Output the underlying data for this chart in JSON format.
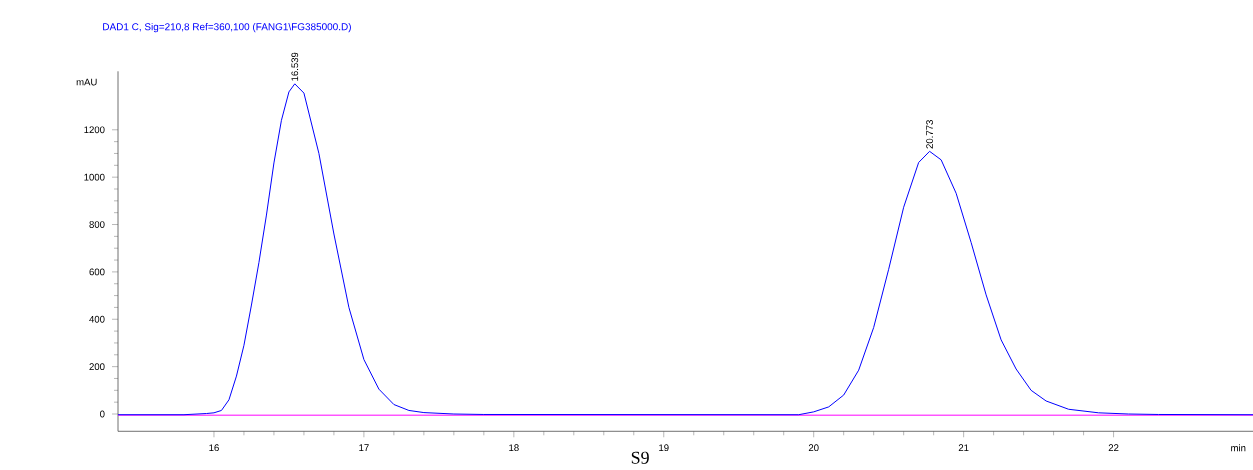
{
  "chart_data": {
    "type": "line",
    "title": "DAD1 C, Sig=210,8 Ref=360,100 (FANG1\\FG385000.D)",
    "xlabel": "min",
    "ylabel": "mAU",
    "xlim": [
      15.36,
      22.93
    ],
    "ylim": [
      -73,
      1447
    ],
    "xticks": [
      16,
      17,
      18,
      19,
      20,
      21,
      22
    ],
    "yticks": [
      0,
      200,
      400,
      600,
      800,
      1000,
      1200
    ],
    "series": [
      {
        "color": "#ff00ff",
        "x": [
          15.36,
          22.93
        ],
        "values": [
          -5,
          -5
        ]
      },
      {
        "color": "#0000ff",
        "x": [
          15.36,
          15.8,
          15.95,
          16.0,
          16.05,
          16.1,
          16.15,
          16.2,
          16.25,
          16.3,
          16.35,
          16.4,
          16.45,
          16.5,
          16.539,
          16.6,
          16.7,
          16.8,
          16.9,
          17.0,
          17.1,
          17.2,
          17.3,
          17.4,
          17.6,
          17.8,
          19.9,
          20.0,
          20.1,
          20.2,
          20.3,
          20.4,
          20.5,
          20.6,
          20.7,
          20.773,
          20.85,
          20.95,
          21.05,
          21.15,
          21.25,
          21.35,
          21.45,
          21.55,
          21.7,
          21.9,
          22.1,
          22.3,
          22.93
        ],
        "values": [
          -3,
          -3,
          2,
          5,
          15,
          60,
          160,
          290,
          460,
          640,
          840,
          1060,
          1240,
          1360,
          1394,
          1355,
          1100,
          760,
          450,
          230,
          105,
          40,
          15,
          6,
          0,
          -2,
          -3,
          9,
          30,
          80,
          185,
          365,
          611,
          873,
          1062,
          1109,
          1073,
          932,
          724,
          503,
          313,
          190,
          100,
          55,
          20,
          5,
          0,
          -2,
          -3
        ]
      }
    ],
    "annotations": [
      {
        "text": "16.539",
        "x": 16.539,
        "y": 1394
      },
      {
        "text": "20.773",
        "x": 20.773,
        "y": 1109
      },
      "S9"
    ]
  }
}
